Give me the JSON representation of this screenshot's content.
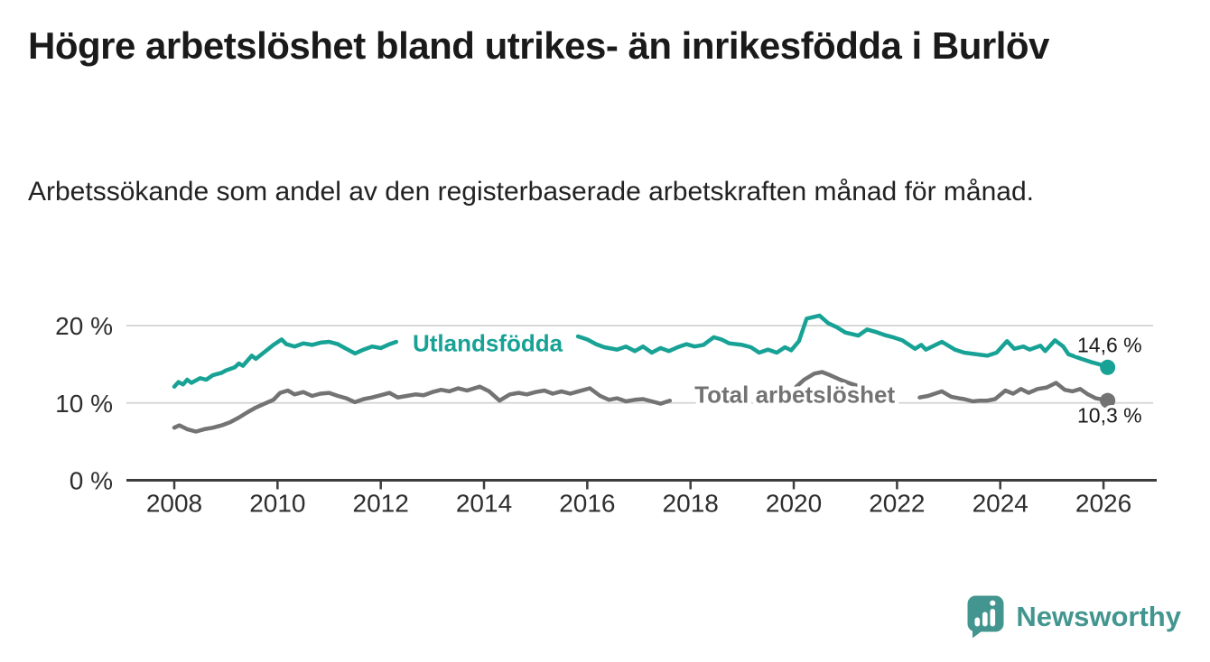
{
  "header": {
    "title": "Högre arbetslöshet bland utrikes- än inrikesfödda i Burlöv",
    "subtitle": "Arbetssökande som andel av den registerbaserade arbetskraften månad för månad."
  },
  "footer": {
    "logo_text": "Newsworthy"
  },
  "colors": {
    "title": "#1a1a1a",
    "subtitle": "#222222",
    "axis": "#3d3d3d",
    "tick_label": "#2e2e2e",
    "gridline": "#d8d8d8",
    "utlandsfodda": "#17a295",
    "total": "#737373",
    "value_label": "#1a1a1a",
    "logo": "#43968f",
    "background": "#ffffff"
  },
  "chart_data": {
    "type": "line",
    "title": "Högre arbetslöshet bland utrikes- än inrikesfödda i Burlöv",
    "subtitle": "Arbetssökande som andel av den registerbaserade arbetskraften månad för månad.",
    "xlabel": "",
    "ylabel": "",
    "x_domain": [
      2008,
      2026.1
    ],
    "ylim": [
      0,
      20
    ],
    "grid": "horizontal",
    "legend_position": "inline-labels",
    "x_tick_years": [
      2008,
      2010,
      2012,
      2014,
      2016,
      2018,
      2020,
      2022,
      2024,
      2026
    ],
    "y_ticks": [
      {
        "value": 0,
        "label": "0 %"
      },
      {
        "value": 10,
        "label": "10 %"
      },
      {
        "value": 20,
        "label": "20 %"
      }
    ],
    "series": [
      {
        "key": "total-arbetsloshet",
        "name": "Total arbetslöshet",
        "color": "#737373",
        "label": {
          "text": "Total arbetslöshet",
          "year": 2020.02,
          "value": 11.1
        },
        "end_label": {
          "text": "10,3 %",
          "position": "below"
        },
        "last_value": 10.3,
        "segments": [
          [
            [
              2008.0,
              6.8
            ],
            [
              2008.1,
              7.1
            ],
            [
              2008.25,
              6.6
            ],
            [
              2008.42,
              6.3
            ],
            [
              2008.58,
              6.6
            ],
            [
              2008.75,
              6.8
            ],
            [
              2008.92,
              7.1
            ],
            [
              2009.08,
              7.5
            ],
            [
              2009.25,
              8.1
            ],
            [
              2009.42,
              8.8
            ],
            [
              2009.58,
              9.4
            ],
            [
              2009.75,
              9.9
            ],
            [
              2009.92,
              10.4
            ],
            [
              2010.05,
              11.3
            ],
            [
              2010.2,
              11.6
            ],
            [
              2010.33,
              11.1
            ],
            [
              2010.5,
              11.4
            ],
            [
              2010.67,
              10.9
            ],
            [
              2010.83,
              11.2
            ],
            [
              2011.0,
              11.3
            ],
            [
              2011.17,
              10.9
            ],
            [
              2011.33,
              10.6
            ],
            [
              2011.5,
              10.1
            ],
            [
              2011.67,
              10.5
            ],
            [
              2011.83,
              10.7
            ],
            [
              2012.0,
              11.0
            ],
            [
              2012.17,
              11.3
            ],
            [
              2012.33,
              10.7
            ],
            [
              2012.5,
              10.9
            ],
            [
              2012.67,
              11.1
            ],
            [
              2012.83,
              11.0
            ],
            [
              2013.0,
              11.4
            ],
            [
              2013.17,
              11.7
            ],
            [
              2013.33,
              11.5
            ],
            [
              2013.5,
              11.9
            ],
            [
              2013.67,
              11.6
            ],
            [
              2013.92,
              12.1
            ],
            [
              2014.1,
              11.5
            ],
            [
              2014.3,
              10.3
            ],
            [
              2014.5,
              11.1
            ],
            [
              2014.67,
              11.3
            ],
            [
              2014.83,
              11.1
            ],
            [
              2015.0,
              11.4
            ],
            [
              2015.17,
              11.6
            ],
            [
              2015.33,
              11.2
            ],
            [
              2015.5,
              11.5
            ],
            [
              2015.67,
              11.2
            ],
            [
              2015.83,
              11.5
            ],
            [
              2016.05,
              11.9
            ],
            [
              2016.25,
              10.9
            ],
            [
              2016.42,
              10.4
            ],
            [
              2016.58,
              10.6
            ],
            [
              2016.75,
              10.2
            ],
            [
              2016.92,
              10.4
            ],
            [
              2017.08,
              10.5
            ],
            [
              2017.25,
              10.2
            ],
            [
              2017.42,
              9.9
            ],
            [
              2017.6,
              10.3
            ]
          ],
          [
            [
              2020.05,
              12.1
            ],
            [
              2020.2,
              13.0
            ],
            [
              2020.4,
              13.8
            ],
            [
              2020.55,
              14.0
            ],
            [
              2020.7,
              13.6
            ],
            [
              2020.9,
              13.0
            ],
            [
              2021.1,
              12.5
            ],
            [
              2021.33,
              12.0
            ]
          ],
          [
            [
              2022.44,
              10.7
            ],
            [
              2022.6,
              10.9
            ],
            [
              2022.87,
              11.5
            ],
            [
              2023.05,
              10.8
            ],
            [
              2023.2,
              10.6
            ],
            [
              2023.3,
              10.5
            ],
            [
              2023.47,
              10.2
            ],
            [
              2023.6,
              10.3
            ],
            [
              2023.75,
              10.3
            ],
            [
              2023.9,
              10.5
            ],
            [
              2024.1,
              11.6
            ],
            [
              2024.25,
              11.2
            ],
            [
              2024.4,
              11.8
            ],
            [
              2024.55,
              11.3
            ],
            [
              2024.72,
              11.8
            ],
            [
              2024.9,
              12.0
            ],
            [
              2025.08,
              12.6
            ],
            [
              2025.25,
              11.7
            ],
            [
              2025.4,
              11.5
            ],
            [
              2025.55,
              11.8
            ],
            [
              2025.7,
              11.1
            ],
            [
              2025.85,
              10.6
            ],
            [
              2026.08,
              10.3
            ]
          ]
        ]
      },
      {
        "key": "utlandsfodda",
        "name": "Utlandsfödda",
        "color": "#17a295",
        "label": {
          "text": "Utlandsfödda",
          "year": 2014.07,
          "value": 17.7
        },
        "end_label": {
          "text": "14,6 %",
          "position": "above"
        },
        "last_value": 14.6,
        "segments": [
          [
            [
              2008.0,
              12.1
            ],
            [
              2008.08,
              12.7
            ],
            [
              2008.17,
              12.4
            ],
            [
              2008.25,
              13.0
            ],
            [
              2008.33,
              12.6
            ],
            [
              2008.5,
              13.2
            ],
            [
              2008.62,
              13.0
            ],
            [
              2008.75,
              13.6
            ],
            [
              2008.92,
              13.9
            ],
            [
              2009.0,
              14.2
            ],
            [
              2009.17,
              14.6
            ],
            [
              2009.25,
              15.1
            ],
            [
              2009.33,
              14.8
            ],
            [
              2009.5,
              16.1
            ],
            [
              2009.58,
              15.7
            ],
            [
              2009.75,
              16.6
            ],
            [
              2009.92,
              17.5
            ],
            [
              2010.08,
              18.2
            ],
            [
              2010.17,
              17.6
            ],
            [
              2010.33,
              17.3
            ],
            [
              2010.5,
              17.7
            ],
            [
              2010.67,
              17.5
            ],
            [
              2010.83,
              17.8
            ],
            [
              2011.0,
              17.9
            ],
            [
              2011.17,
              17.6
            ],
            [
              2011.33,
              17.0
            ],
            [
              2011.5,
              16.4
            ],
            [
              2011.67,
              16.9
            ],
            [
              2011.83,
              17.3
            ],
            [
              2012.0,
              17.1
            ],
            [
              2012.17,
              17.6
            ],
            [
              2012.3,
              17.9
            ]
          ],
          [
            [
              2015.82,
              18.6
            ],
            [
              2016.0,
              18.2
            ],
            [
              2016.17,
              17.6
            ],
            [
              2016.33,
              17.2
            ],
            [
              2016.58,
              16.9
            ],
            [
              2016.75,
              17.3
            ],
            [
              2016.92,
              16.7
            ],
            [
              2017.08,
              17.3
            ],
            [
              2017.25,
              16.5
            ],
            [
              2017.42,
              17.1
            ],
            [
              2017.58,
              16.7
            ],
            [
              2017.75,
              17.2
            ],
            [
              2017.92,
              17.6
            ],
            [
              2018.08,
              17.3
            ],
            [
              2018.25,
              17.5
            ],
            [
              2018.45,
              18.5
            ],
            [
              2018.6,
              18.2
            ],
            [
              2018.75,
              17.7
            ],
            [
              2019.0,
              17.5
            ],
            [
              2019.17,
              17.2
            ],
            [
              2019.33,
              16.5
            ],
            [
              2019.5,
              16.9
            ],
            [
              2019.67,
              16.5
            ],
            [
              2019.83,
              17.2
            ],
            [
              2019.95,
              16.8
            ],
            [
              2020.1,
              18.0
            ],
            [
              2020.25,
              20.9
            ],
            [
              2020.5,
              21.3
            ],
            [
              2020.67,
              20.3
            ],
            [
              2020.83,
              19.8
            ],
            [
              2021.0,
              19.1
            ],
            [
              2021.25,
              18.7
            ],
            [
              2021.42,
              19.5
            ],
            [
              2021.58,
              19.2
            ],
            [
              2021.75,
              18.8
            ],
            [
              2021.92,
              18.5
            ],
            [
              2022.1,
              18.1
            ],
            [
              2022.35,
              17.0
            ],
            [
              2022.47,
              17.5
            ],
            [
              2022.56,
              16.9
            ],
            [
              2022.87,
              17.9
            ],
            [
              2023.12,
              16.9
            ],
            [
              2023.3,
              16.5
            ],
            [
              2023.75,
              16.1
            ],
            [
              2023.93,
              16.5
            ],
            [
              2024.13,
              18.0
            ],
            [
              2024.27,
              17.0
            ],
            [
              2024.45,
              17.3
            ],
            [
              2024.57,
              16.9
            ],
            [
              2024.78,
              17.4
            ],
            [
              2024.87,
              16.7
            ],
            [
              2025.06,
              18.1
            ],
            [
              2025.22,
              17.3
            ],
            [
              2025.32,
              16.3
            ],
            [
              2025.57,
              15.7
            ],
            [
              2025.75,
              15.3
            ],
            [
              2025.92,
              15.0
            ],
            [
              2026.08,
              14.6
            ]
          ]
        ]
      }
    ]
  }
}
